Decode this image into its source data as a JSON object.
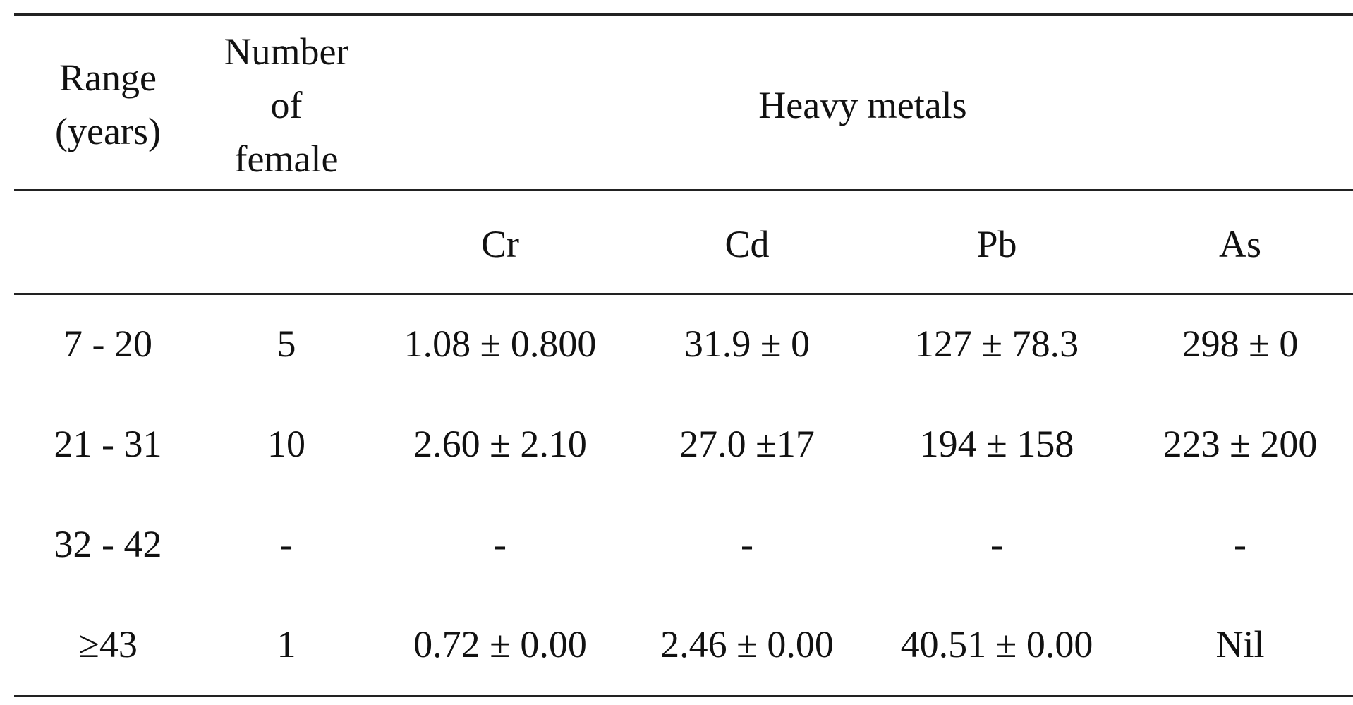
{
  "table": {
    "header": {
      "range": [
        "Range",
        "(years)"
      ],
      "number": [
        "Number",
        "of",
        "female"
      ],
      "group": "Heavy metals"
    },
    "subheader": [
      "Cr",
      "Cd",
      "Pb",
      "As"
    ],
    "rows": [
      [
        "7 - 20",
        "5",
        "1.08 ± 0.800",
        "31.9 ± 0",
        "127 ± 78.3",
        "298 ± 0"
      ],
      [
        "21 - 31",
        "10",
        "2.60 ± 2.10",
        "27.0 ±17",
        "194 ± 158",
        "223 ± 200"
      ],
      [
        "32 - 42",
        "-",
        "-",
        "-",
        "-",
        "-"
      ],
      [
        "≥43",
        "1",
        "0.72 ± 0.00",
        "2.46 ± 0.00",
        "40.51 ± 0.00",
        "Nil"
      ]
    ]
  }
}
